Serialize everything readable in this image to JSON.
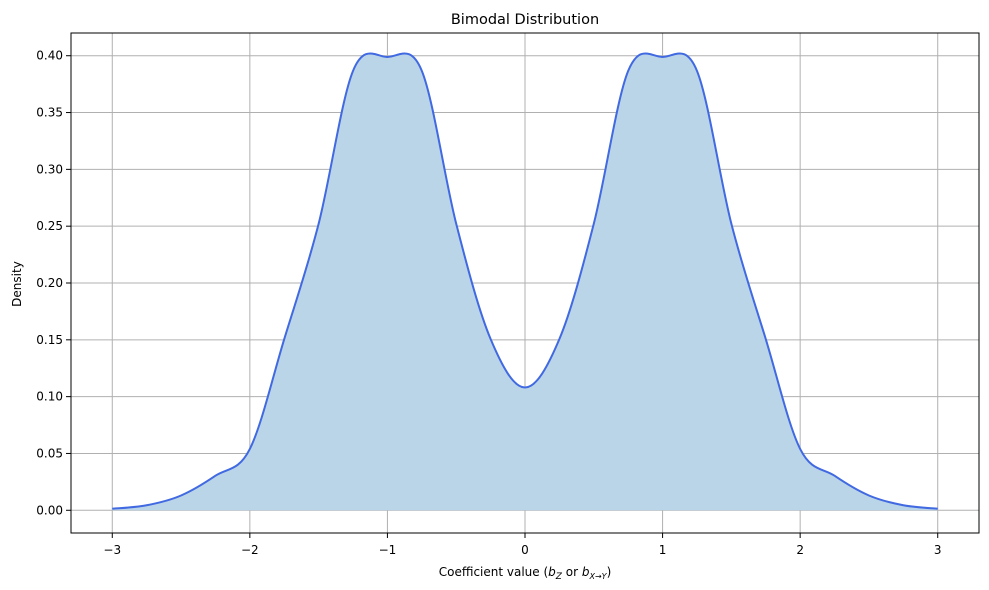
{
  "chart_data": {
    "type": "area",
    "title": "Bimodal Distribution",
    "xlabel": {
      "prefix": "Coefficient value (",
      "b1": "b",
      "b1_sub": "Z",
      "or": " or ",
      "b2": "b",
      "b2_sub": "X→Y",
      "suffix": ")"
    },
    "ylabel": "Density",
    "xlim": [
      -3.3,
      3.3
    ],
    "ylim": [
      -0.02,
      0.42
    ],
    "xticks": [
      -3,
      -2,
      -1,
      0,
      1,
      2,
      3
    ],
    "xtick_labels": [
      "−3",
      "−2",
      "−1",
      "0",
      "1",
      "2",
      "3"
    ],
    "yticks": [
      0.0,
      0.05,
      0.1,
      0.15,
      0.2,
      0.25,
      0.3,
      0.35,
      0.4
    ],
    "ytick_labels": [
      "0.00",
      "0.05",
      "0.10",
      "0.15",
      "0.20",
      "0.25",
      "0.30",
      "0.35",
      "0.40"
    ],
    "grid": true,
    "colors": {
      "line": "#4169e1",
      "fill": "#bad5e8",
      "grid": "#b0b0b0"
    },
    "series": [
      {
        "x": [
          -3.0,
          -2.75,
          -2.5,
          -2.25,
          -2.0,
          -1.75,
          -1.5,
          -1.25,
          -1.0,
          -0.75,
          -0.5,
          -0.25,
          0.0,
          0.25,
          0.5,
          0.75,
          1.0,
          1.25,
          1.5,
          1.75,
          2.0,
          2.25,
          2.5,
          2.75,
          3.0
        ],
        "values": [
          0.0013,
          0.0044,
          0.013,
          0.0304,
          0.054,
          0.1507,
          0.2521,
          0.3867,
          0.3989,
          0.3867,
          0.2521,
          0.1507,
          0.108,
          0.1507,
          0.2521,
          0.3867,
          0.3989,
          0.3867,
          0.2521,
          0.1507,
          0.054,
          0.0304,
          0.013,
          0.0044,
          0.0013
        ]
      }
    ]
  }
}
